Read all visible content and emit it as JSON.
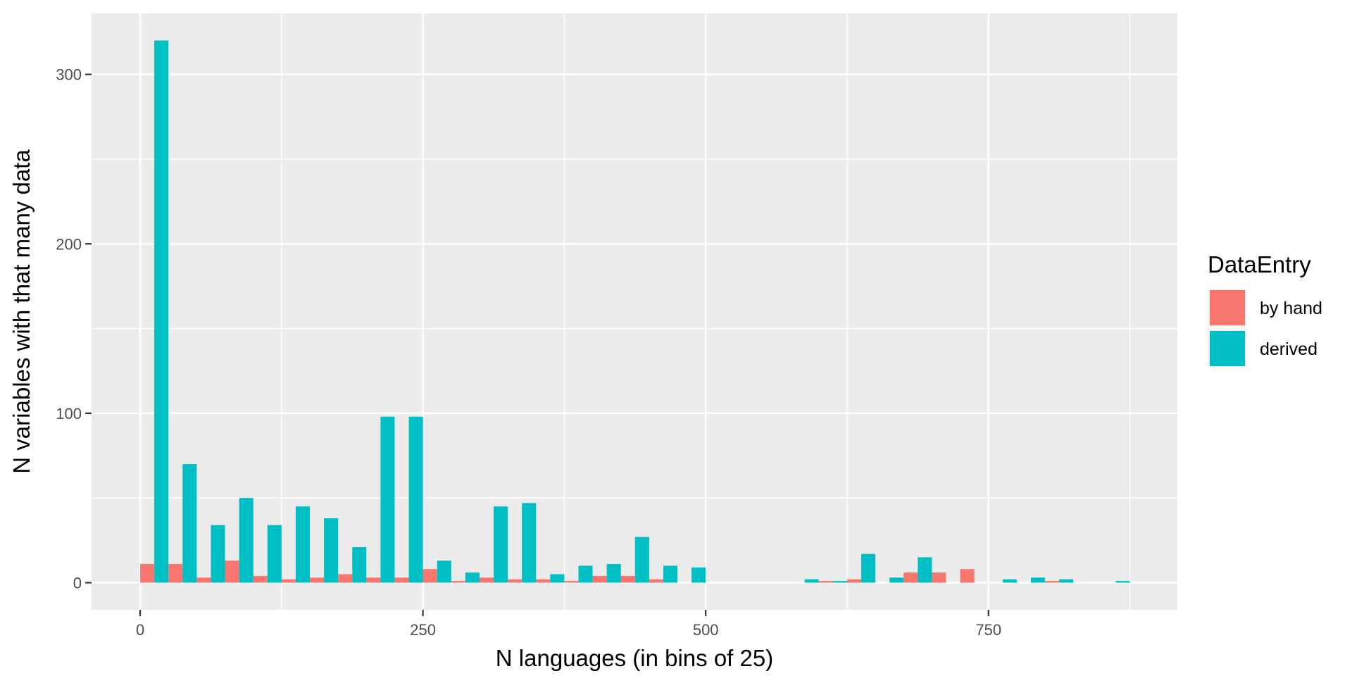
{
  "chart_data": {
    "type": "bar",
    "title": "",
    "xlabel": "N languages (in bins of 25)",
    "ylabel": "N variables with that many data",
    "xlim": [
      -43,
      917
    ],
    "ylim": [
      -16,
      336
    ],
    "x_ticks": [
      0,
      250,
      500,
      750
    ],
    "y_ticks": [
      0,
      100,
      200,
      300
    ],
    "bin_width": 25,
    "grid": true,
    "legend": {
      "title": "DataEntry",
      "position": "right"
    },
    "series": [
      {
        "name": "by hand",
        "color": "#F8766D",
        "x": [
          12.5,
          37.5,
          62.5,
          87.5,
          112.5,
          137.5,
          162.5,
          187.5,
          212.5,
          237.5,
          262.5,
          287.5,
          312.5,
          337.5,
          362.5,
          387.5,
          412.5,
          437.5,
          462.5,
          612.5,
          637.5,
          687.5,
          712.5,
          737.5,
          812.5
        ],
        "values": [
          11,
          11,
          3,
          13,
          4,
          2,
          3,
          5,
          3,
          3,
          8,
          1,
          3,
          2,
          2,
          1,
          4,
          4,
          2,
          1,
          2,
          6,
          6,
          8,
          1
        ]
      },
      {
        "name": "derived",
        "color": "#00BFC4",
        "x": [
          12.5,
          37.5,
          62.5,
          87.5,
          112.5,
          137.5,
          162.5,
          187.5,
          212.5,
          237.5,
          262.5,
          287.5,
          312.5,
          337.5,
          362.5,
          387.5,
          412.5,
          437.5,
          462.5,
          487.5,
          587.5,
          612.5,
          637.5,
          662.5,
          687.5,
          762.5,
          787.5,
          812.5,
          862.5
        ],
        "values": [
          320,
          70,
          34,
          50,
          34,
          45,
          38,
          21,
          98,
          98,
          13,
          6,
          45,
          47,
          5,
          10,
          11,
          27,
          10,
          9,
          2,
          1,
          17,
          3,
          15,
          2,
          3,
          2,
          1
        ]
      }
    ]
  }
}
